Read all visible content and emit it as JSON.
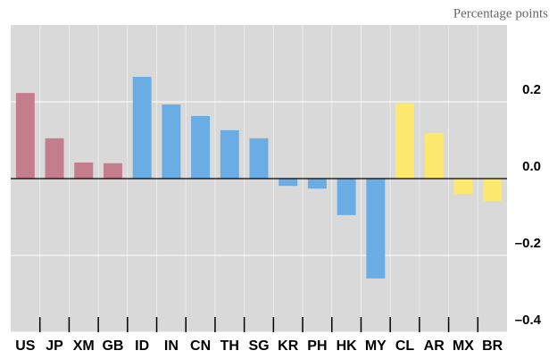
{
  "chart_data": {
    "type": "bar",
    "y_label": "Percentage points",
    "categories": [
      "US",
      "JP",
      "XM",
      "GB",
      "ID",
      "IN",
      "CN",
      "TH",
      "SG",
      "KR",
      "PH",
      "HK",
      "MY",
      "CL",
      "AR",
      "MX",
      "BR"
    ],
    "values": [
      0.223,
      0.105,
      0.042,
      0.04,
      0.265,
      0.193,
      0.163,
      0.126,
      0.105,
      -0.019,
      -0.026,
      -0.095,
      -0.26,
      0.195,
      0.119,
      -0.04,
      -0.058
    ],
    "colors": [
      "#c47d8c",
      "#c47d8c",
      "#c47d8c",
      "#c47d8c",
      "#6aade4",
      "#6aade4",
      "#6aade4",
      "#6aade4",
      "#6aade4",
      "#6aade4",
      "#6aade4",
      "#6aade4",
      "#6aade4",
      "#fde86e",
      "#fde86e",
      "#fde86e",
      "#fde86e"
    ],
    "ylim": [
      -0.4,
      0.4
    ],
    "yticks": [
      {
        "value": -0.4,
        "label": "–0.4"
      },
      {
        "value": -0.2,
        "label": "–0.2"
      },
      {
        "value": 0,
        "label": "0.0"
      },
      0.2
    ],
    "grid": true
  }
}
